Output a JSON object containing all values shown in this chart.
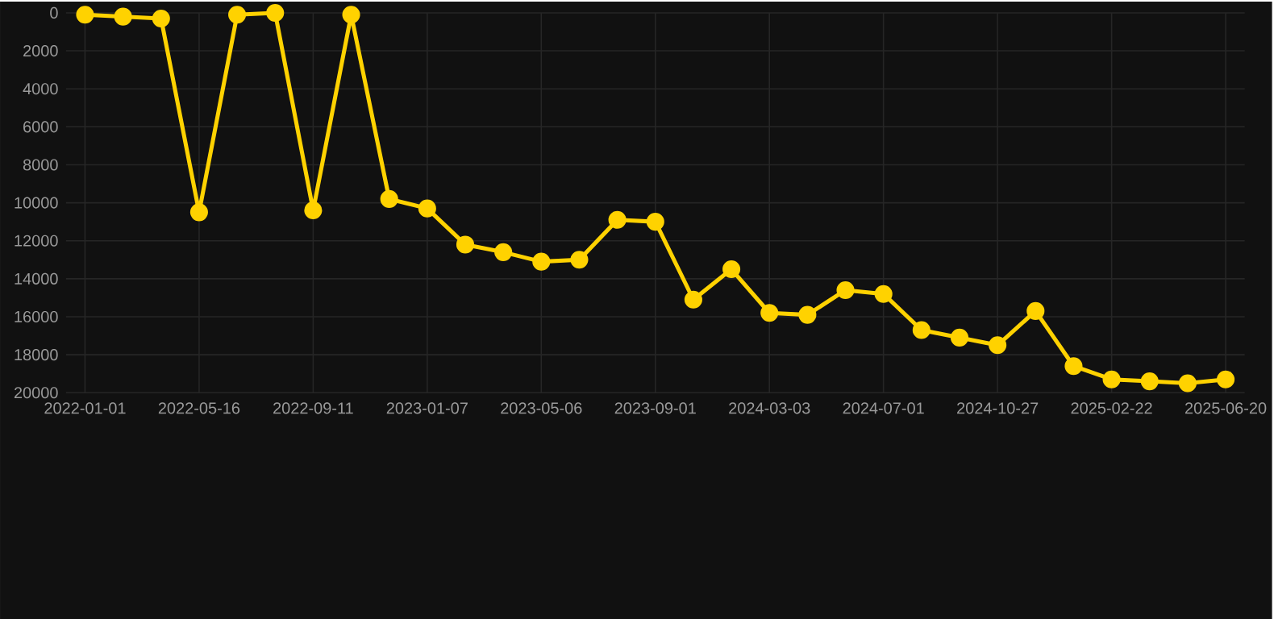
{
  "chart_data": {
    "type": "line",
    "categories": [
      "2022-01-01",
      null,
      null,
      "2022-05-16",
      null,
      null,
      "2022-09-11",
      null,
      null,
      "2023-01-07",
      null,
      null,
      "2023-05-06",
      null,
      null,
      "2023-09-01",
      null,
      null,
      "2024-03-03",
      null,
      null,
      "2024-07-01",
      null,
      null,
      "2024-10-27",
      null,
      null,
      "2025-02-22",
      null,
      null,
      "2025-06-20"
    ],
    "series": [
      {
        "color": "#ffd200",
        "values": [
          100,
          200,
          300,
          10500,
          100,
          0,
          10400,
          100,
          9800,
          10300,
          12200,
          12600,
          13100,
          13000,
          10900,
          11000,
          15100,
          13500,
          15800,
          15900,
          14600,
          14800,
          16700,
          17100,
          17500,
          15700,
          18600,
          19300,
          19400,
          19500,
          19300
        ]
      }
    ],
    "ylim": [
      20000,
      0
    ],
    "yticks": [
      0,
      2000,
      4000,
      6000,
      8000,
      10000,
      12000,
      14000,
      16000,
      18000,
      20000
    ],
    "grid": true,
    "marker": "circle",
    "line_style": "solid"
  }
}
